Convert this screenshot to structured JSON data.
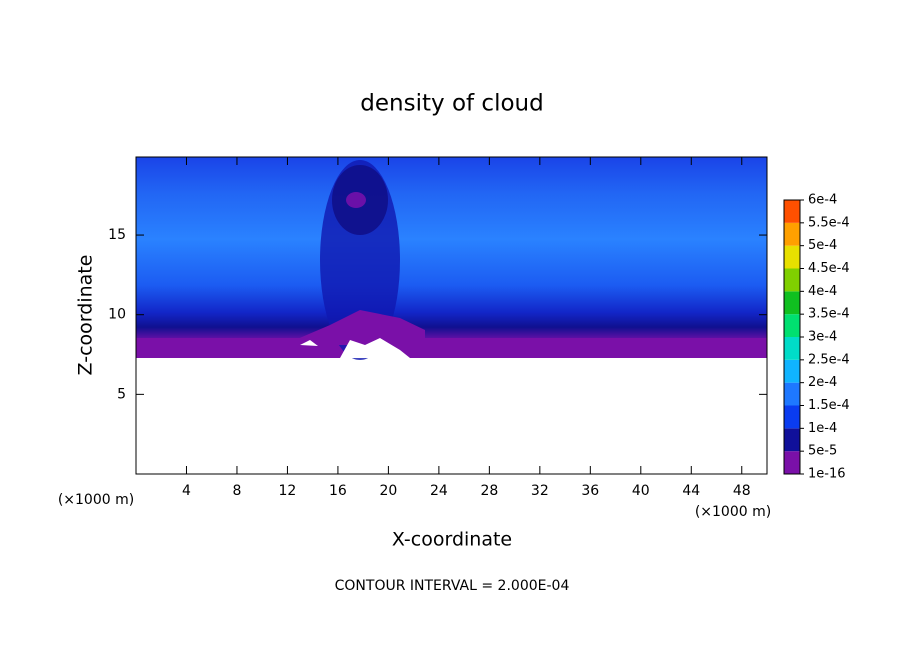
{
  "chart_data": {
    "type": "contour",
    "title": "density of cloud",
    "x_label": "X-coordinate",
    "y_label": "Z-coordinate",
    "x_unit": "(×1000 m)",
    "y_unit": "(×1000 m)",
    "note": "CONTOUR INTERVAL = 2.000E-04",
    "xlim": [
      0,
      50
    ],
    "xticks": [
      4,
      8,
      12,
      16,
      20,
      24,
      28,
      32,
      36,
      40,
      44,
      48
    ],
    "ylim": [
      0,
      19.9
    ],
    "yticks": [
      5,
      10,
      15
    ],
    "colorbar": {
      "levels": [
        {
          "value": 1e-16,
          "label": "1e-16"
        },
        {
          "value": 5e-05,
          "label": "5e-5"
        },
        {
          "value": 0.0001,
          "label": "1e-4"
        },
        {
          "value": 0.00015,
          "label": "1.5e-4"
        },
        {
          "value": 0.0002,
          "label": "2e-4"
        },
        {
          "value": 0.00025,
          "label": "2.5e-4"
        },
        {
          "value": 0.0003,
          "label": "3e-4"
        },
        {
          "value": 0.00035,
          "label": "3.5e-4"
        },
        {
          "value": 0.0004,
          "label": "4e-4"
        },
        {
          "value": 0.00045,
          "label": "4.5e-4"
        },
        {
          "value": 0.0005,
          "label": "5e-4"
        },
        {
          "value": 0.00055,
          "label": "5.5e-4"
        },
        {
          "value": 0.0006,
          "label": "6e-4"
        }
      ],
      "colors": [
        "#7a10a8",
        "#10109a",
        "#0a3cf0",
        "#1e78ff",
        "#10b4ff",
        "#00dcc8",
        "#00e070",
        "#10c020",
        "#80d000",
        "#e8e000",
        "#ffa000",
        "#ff5000",
        "#ff2020",
        "#ff8080"
      ]
    }
  }
}
